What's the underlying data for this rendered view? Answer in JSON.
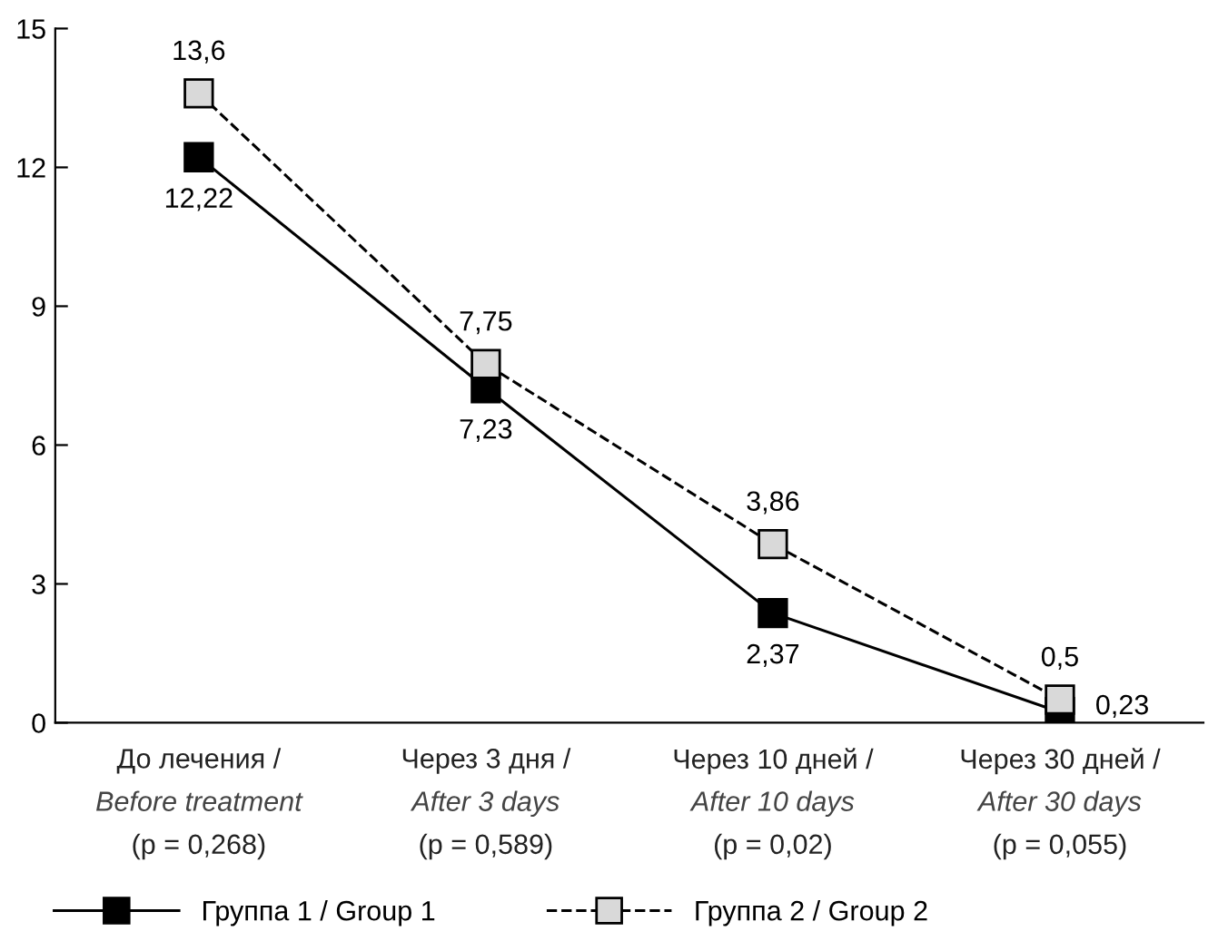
{
  "chart_data": {
    "type": "line",
    "categories": [
      "До лечения /\nBefore treatment\n(p = 0,268)",
      "Через 3 дня /\nAfter 3 days\n(p = 0,589)",
      "Через 10 дней /\nAfter 10 days\n(p = 0,02)",
      "Через 30 дней /\nAfter 30 days\n(p = 0,055)"
    ],
    "series": [
      {
        "name": "Группа 1 / Group 1",
        "color": "#000000",
        "values": [
          12.22,
          7.23,
          2.37,
          0.23
        ],
        "value_labels": [
          "12,22",
          "7,23",
          "2,37",
          "0,23"
        ],
        "line_style": "solid"
      },
      {
        "name": "Группа 2 / Group 2",
        "color": "#d9d9d9",
        "values": [
          13.6,
          7.75,
          3.86,
          0.5
        ],
        "value_labels": [
          "13,6",
          "7,75",
          "3,86",
          "0,5"
        ],
        "line_style": "dashed"
      }
    ],
    "ylim": [
      0,
      15
    ],
    "yticks": [
      0,
      3,
      6,
      9,
      12,
      15
    ],
    "marker": "square",
    "grid": false,
    "legend": "bottom"
  }
}
